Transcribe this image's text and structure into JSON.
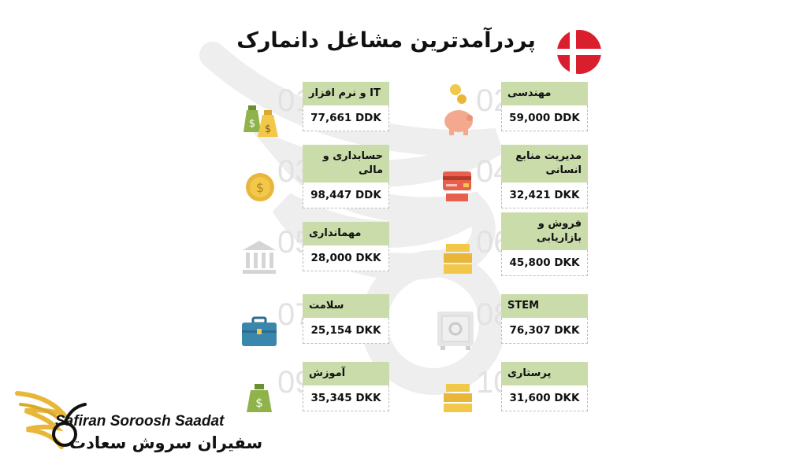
{
  "title": "پردرآمدترین مشاغل دانمارک",
  "colors": {
    "label_bg": "#c9dcaa",
    "flag_red": "#d91f2e",
    "accent_gold": "#e8b73a"
  },
  "jobs": [
    {
      "num": "01",
      "label": "IT و نرم افزار",
      "value": "77,661 DDK",
      "icon": "money-bags-icon"
    },
    {
      "num": "02",
      "label": "مهندسی",
      "value": "59,000 DDK",
      "icon": "piggy-bank-icon"
    },
    {
      "num": "03",
      "label": "حسابداری و مالی",
      "value": "98,447 DDK",
      "icon": "gold-coin-icon"
    },
    {
      "num": "04",
      "label": "مدیریت منابع انسانی",
      "value": "32,421 DKK",
      "icon": "credit-card-icon"
    },
    {
      "num": "05",
      "label": "مهمانداری",
      "value": "28,000 DKK",
      "icon": "bank-building-icon"
    },
    {
      "num": "06",
      "label": "فروش و بازاریابی",
      "value": "45,800 DKK",
      "icon": "gold-bars-icon"
    },
    {
      "num": "07",
      "label": "سلامت",
      "value": "25,154 DKK",
      "icon": "briefcase-icon"
    },
    {
      "num": "08",
      "label": "STEM",
      "value": "76,307 DKK",
      "icon": "safe-icon"
    },
    {
      "num": "09",
      "label": "آموزش",
      "value": "35,345 DKK",
      "icon": "money-bag-icon"
    },
    {
      "num": "10",
      "label": "پرستاری",
      "value": "31,600 DKK",
      "icon": "gold-bars-icon"
    }
  ],
  "logo": {
    "name_en": "Safiran Soroosh Saadat",
    "name_fa": "سفیران سروش سعادت",
    "icon": "bird-wing-icon"
  }
}
